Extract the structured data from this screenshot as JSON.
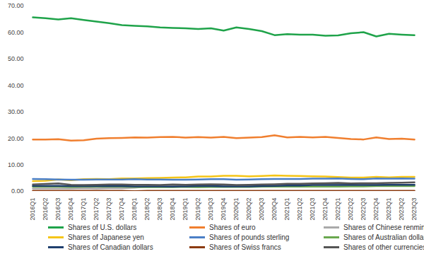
{
  "chart_data": {
    "type": "line",
    "categories": [
      "2016Q1",
      "2016Q2",
      "2016Q3",
      "2016Q4",
      "2017Q1",
      "2017Q2",
      "2017Q3",
      "2017Q4",
      "2018Q1",
      "2018Q2",
      "2018Q3",
      "2018Q4",
      "2019Q1",
      "2019Q2",
      "2019Q3",
      "2019Q4",
      "2020Q1",
      "2020Q2",
      "2020Q3",
      "2020Q4",
      "2021Q1",
      "2021Q2",
      "2021Q3",
      "2021Q4",
      "2022Q1",
      "2022Q2",
      "2022Q3",
      "2022Q4",
      "2023Q1",
      "2023Q2",
      "2023Q3"
    ],
    "ylim": [
      0,
      70
    ],
    "yticks": [
      {
        "value": 0,
        "label": "0.00"
      },
      {
        "value": 10,
        "label": "10.00"
      },
      {
        "value": 20,
        "label": "20.00"
      },
      {
        "value": 30,
        "label": "30.00"
      },
      {
        "value": 40,
        "label": "40.00"
      },
      {
        "value": 50,
        "label": "50.00"
      },
      {
        "value": 60,
        "label": "60.00"
      },
      {
        "value": 70,
        "label": "70.00"
      }
    ],
    "grid": false,
    "legend": "bottom",
    "series": [
      {
        "name": "Shares of U.S. dollars",
        "color": "#1fa34a",
        "values": [
          65.7,
          65.4,
          64.9,
          65.4,
          64.7,
          64.1,
          63.5,
          62.8,
          62.5,
          62.3,
          61.9,
          61.7,
          61.6,
          61.3,
          61.6,
          60.7,
          61.9,
          61.3,
          60.5,
          59.0,
          59.4,
          59.2,
          59.2,
          58.8,
          58.9,
          59.7,
          60.1,
          58.5,
          59.5,
          59.2,
          59.0
        ]
      },
      {
        "name": "Shares of euro",
        "color": "#f07f2f",
        "values": [
          19.6,
          19.6,
          19.7,
          19.2,
          19.3,
          19.9,
          20.1,
          20.2,
          20.4,
          20.3,
          20.5,
          20.6,
          20.3,
          20.5,
          20.3,
          20.6,
          20.1,
          20.3,
          20.5,
          21.2,
          20.4,
          20.6,
          20.4,
          20.6,
          20.2,
          19.8,
          19.6,
          20.4,
          19.8,
          19.9,
          19.6
        ]
      },
      {
        "name": "Shares of Chinese renminbi",
        "color": "#a9a9a9",
        "values": [
          1.1,
          1.1,
          1.1,
          1.1,
          1.2,
          1.1,
          1.2,
          1.2,
          1.4,
          1.8,
          1.8,
          1.9,
          1.9,
          2.0,
          2.0,
          1.9,
          2.0,
          2.0,
          2.1,
          2.3,
          2.5,
          2.6,
          2.7,
          2.8,
          2.9,
          2.9,
          2.8,
          2.6,
          2.6,
          2.5,
          2.4
        ]
      },
      {
        "name": "Shares of Japanese yen",
        "color": "#f5c518",
        "values": [
          3.9,
          4.0,
          4.5,
          4.2,
          4.6,
          4.7,
          4.6,
          4.9,
          4.9,
          5.0,
          5.1,
          5.2,
          5.3,
          5.6,
          5.6,
          5.9,
          5.9,
          5.7,
          5.8,
          6.0,
          5.9,
          5.8,
          5.7,
          5.6,
          5.4,
          5.2,
          5.2,
          5.5,
          5.3,
          5.5,
          5.5
        ]
      },
      {
        "name": "Shares of pounds sterling",
        "color": "#4b7fc6",
        "values": [
          4.7,
          4.6,
          4.5,
          4.4,
          4.4,
          4.5,
          4.5,
          4.5,
          4.6,
          4.5,
          4.5,
          4.4,
          4.4,
          4.5,
          4.6,
          4.6,
          4.4,
          4.5,
          4.6,
          4.7,
          4.7,
          4.7,
          4.8,
          4.8,
          4.9,
          4.7,
          4.6,
          4.9,
          4.8,
          4.9,
          4.8
        ]
      },
      {
        "name": "Shares of Australian dollars",
        "color": "#6aa84f",
        "values": [
          1.8,
          1.8,
          1.8,
          1.7,
          1.8,
          1.8,
          1.8,
          1.8,
          1.7,
          1.6,
          1.6,
          1.6,
          1.7,
          1.6,
          1.7,
          1.7,
          1.7,
          1.7,
          1.8,
          1.8,
          1.8,
          1.8,
          1.8,
          1.8,
          1.8,
          1.9,
          1.9,
          2.0,
          2.0,
          2.0,
          2.0
        ]
      },
      {
        "name": "Shares of Canadian dollars",
        "color": "#1f3f6e",
        "values": [
          2.1,
          2.1,
          2.1,
          2.0,
          2.0,
          2.0,
          2.0,
          2.0,
          1.9,
          1.9,
          1.9,
          1.8,
          1.9,
          2.0,
          2.0,
          1.9,
          1.9,
          1.9,
          2.0,
          2.1,
          2.2,
          2.2,
          2.4,
          2.4,
          2.4,
          2.5,
          2.4,
          2.4,
          2.5,
          2.5,
          2.5
        ]
      },
      {
        "name": "Shares of Swiss francs",
        "color": "#8b3a0f",
        "values": [
          0.2,
          0.2,
          0.2,
          0.2,
          0.2,
          0.2,
          0.2,
          0.2,
          0.1,
          0.2,
          0.2,
          0.2,
          0.2,
          0.2,
          0.2,
          0.2,
          0.2,
          0.2,
          0.2,
          0.2,
          0.2,
          0.2,
          0.2,
          0.2,
          0.2,
          0.2,
          0.2,
          0.2,
          0.2,
          0.2,
          0.2
        ]
      },
      {
        "name": "Shares of other currencies",
        "color": "#555555",
        "values": [
          2.6,
          2.8,
          3.0,
          2.5,
          2.4,
          2.5,
          2.6,
          2.6,
          2.5,
          2.5,
          2.4,
          2.6,
          2.5,
          2.6,
          2.7,
          2.6,
          2.4,
          2.5,
          2.6,
          2.7,
          2.9,
          2.9,
          3.0,
          3.1,
          3.2,
          3.0,
          3.1,
          3.1,
          3.2,
          3.3,
          3.4
        ]
      }
    ]
  }
}
